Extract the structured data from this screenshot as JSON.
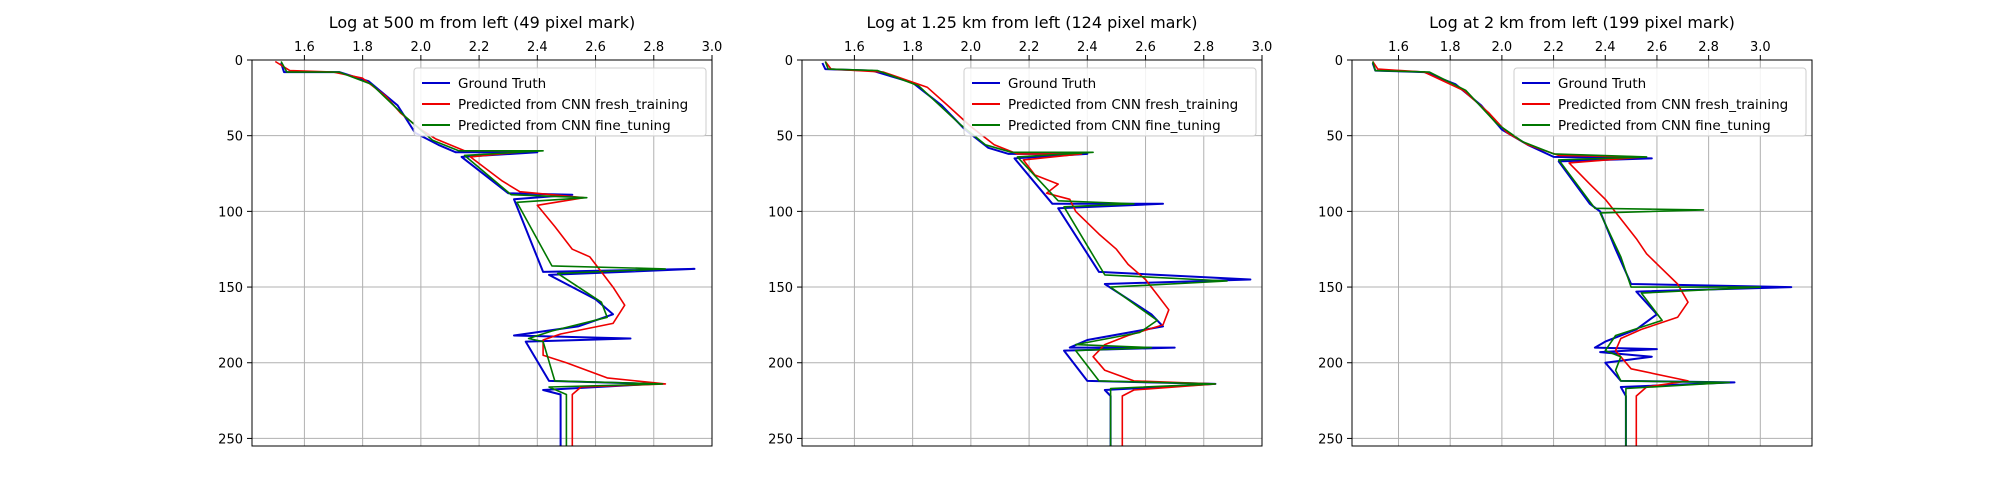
{
  "figure": {
    "colors": {
      "ground_truth": "#0000cc",
      "fresh_training": "#ee0000",
      "fine_tuning": "#007700",
      "grid": "#b0b0b0"
    }
  },
  "chart_data": [
    {
      "type": "line",
      "title": "Log at 500 m from left (49 pixel mark)",
      "xlim": [
        1.42,
        3.0
      ],
      "ylim": [
        255,
        0
      ],
      "xticks": [
        "1.6",
        "1.8",
        "2.0",
        "2.2",
        "2.4",
        "2.6",
        "2.8",
        "3.0"
      ],
      "yticks": [
        "0",
        "50",
        "100",
        "150",
        "200",
        "250"
      ],
      "grid": true,
      "legend_position": "upper-right",
      "legend": [
        "Ground Truth",
        "Predicted from CNN fresh_training",
        "Predicted from CNN fine_tuning"
      ],
      "series": [
        {
          "name": "Ground Truth",
          "color": "#0000cc",
          "points": [
            [
              1.52,
              2
            ],
            [
              1.53,
              8
            ],
            [
              1.72,
              8
            ],
            [
              1.82,
              14
            ],
            [
              1.92,
              30
            ],
            [
              1.98,
              48
            ],
            [
              2.06,
              56
            ],
            [
              2.12,
              61
            ],
            [
              2.4,
              61
            ],
            [
              2.14,
              64
            ],
            [
              2.3,
              88
            ],
            [
              2.52,
              89
            ],
            [
              2.32,
              92
            ],
            [
              2.42,
              140
            ],
            [
              2.94,
              138
            ],
            [
              2.44,
              142
            ],
            [
              2.6,
              158
            ],
            [
              2.66,
              168
            ],
            [
              2.54,
              176
            ],
            [
              2.32,
              182
            ],
            [
              2.72,
              184
            ],
            [
              2.36,
              186
            ],
            [
              2.44,
              212
            ],
            [
              2.8,
              214
            ],
            [
              2.42,
              218
            ],
            [
              2.48,
              221
            ],
            [
              2.48,
              255
            ]
          ]
        },
        {
          "name": "Predicted from CNN fresh_training",
          "color": "#ee0000",
          "points": [
            [
              1.5,
              1
            ],
            [
              1.55,
              7
            ],
            [
              1.7,
              8
            ],
            [
              1.8,
              12
            ],
            [
              1.84,
              18
            ],
            [
              1.88,
              24
            ],
            [
              1.93,
              35
            ],
            [
              2.0,
              46
            ],
            [
              2.05,
              52
            ],
            [
              2.15,
              60
            ],
            [
              2.38,
              60
            ],
            [
              2.17,
              64
            ],
            [
              2.28,
              80
            ],
            [
              2.34,
              87
            ],
            [
              2.56,
              91
            ],
            [
              2.4,
              96
            ],
            [
              2.46,
              110
            ],
            [
              2.52,
              125
            ],
            [
              2.58,
              130
            ],
            [
              2.62,
              140
            ],
            [
              2.66,
              150
            ],
            [
              2.7,
              162
            ],
            [
              2.66,
              174
            ],
            [
              2.48,
              181
            ],
            [
              2.42,
              185
            ],
            [
              2.42,
              195
            ],
            [
              2.5,
              200
            ],
            [
              2.64,
              210
            ],
            [
              2.84,
              214
            ],
            [
              2.55,
              216
            ],
            [
              2.52,
              221
            ],
            [
              2.52,
              255
            ]
          ]
        },
        {
          "name": "Predicted from CNN fine_tuning",
          "color": "#007700",
          "points": [
            [
              1.52,
              1
            ],
            [
              1.54,
              8
            ],
            [
              1.72,
              8
            ],
            [
              1.83,
              16
            ],
            [
              1.95,
              38
            ],
            [
              2.04,
              53
            ],
            [
              2.13,
              60
            ],
            [
              2.42,
              60
            ],
            [
              2.15,
              63
            ],
            [
              2.31,
              89
            ],
            [
              2.57,
              91
            ],
            [
              2.33,
              94
            ],
            [
              2.45,
              136
            ],
            [
              2.84,
              138
            ],
            [
              2.47,
              141
            ],
            [
              2.62,
              160
            ],
            [
              2.64,
              170
            ],
            [
              2.45,
              179
            ],
            [
              2.37,
              184
            ],
            [
              2.42,
              186
            ],
            [
              2.46,
              212
            ],
            [
              2.83,
              214
            ],
            [
              2.44,
              216
            ],
            [
              2.5,
              221
            ],
            [
              2.5,
              255
            ]
          ]
        }
      ]
    },
    {
      "type": "line",
      "title": "Log at 1.25 km from left (124 pixel mark)",
      "xlim": [
        1.42,
        3.0
      ],
      "ylim": [
        255,
        0
      ],
      "xticks": [
        "1.6",
        "1.8",
        "2.0",
        "2.2",
        "2.4",
        "2.6",
        "2.8",
        "3.0"
      ],
      "yticks": [
        "0",
        "50",
        "100",
        "150",
        "200",
        "250"
      ],
      "grid": true,
      "legend_position": "upper-right",
      "legend": [
        "Ground Truth",
        "Predicted from CNN fresh_training",
        "Predicted from CNN fine_tuning"
      ],
      "series": [
        {
          "name": "Ground Truth",
          "color": "#0000cc",
          "points": [
            [
              1.49,
              2
            ],
            [
              1.5,
              6
            ],
            [
              1.66,
              7
            ],
            [
              1.8,
              15
            ],
            [
              1.9,
              30
            ],
            [
              1.98,
              46
            ],
            [
              2.06,
              58
            ],
            [
              2.13,
              62
            ],
            [
              2.4,
              62
            ],
            [
              2.15,
              65
            ],
            [
              2.28,
              95
            ],
            [
              2.66,
              95
            ],
            [
              2.3,
              98
            ],
            [
              2.44,
              140
            ],
            [
              2.96,
              145
            ],
            [
              2.46,
              148
            ],
            [
              2.62,
              168
            ],
            [
              2.66,
              176
            ],
            [
              2.4,
              185
            ],
            [
              2.34,
              190
            ],
            [
              2.7,
              190
            ],
            [
              2.32,
              192
            ],
            [
              2.4,
              212
            ],
            [
              2.84,
              214
            ],
            [
              2.46,
              218
            ],
            [
              2.48,
              222
            ],
            [
              2.48,
              255
            ]
          ]
        },
        {
          "name": "Predicted from CNN fresh_training",
          "color": "#ee0000",
          "points": [
            [
              1.5,
              1
            ],
            [
              1.52,
              6
            ],
            [
              1.7,
              8
            ],
            [
              1.85,
              18
            ],
            [
              1.92,
              30
            ],
            [
              2.0,
              44
            ],
            [
              2.08,
              56
            ],
            [
              2.16,
              62
            ],
            [
              2.38,
              62
            ],
            [
              2.18,
              66
            ],
            [
              2.22,
              76
            ],
            [
              2.3,
              82
            ],
            [
              2.26,
              88
            ],
            [
              2.34,
              92
            ],
            [
              2.36,
              100
            ],
            [
              2.44,
              115
            ],
            [
              2.5,
              125
            ],
            [
              2.54,
              135
            ],
            [
              2.6,
              145
            ],
            [
              2.64,
              155
            ],
            [
              2.68,
              165
            ],
            [
              2.66,
              175
            ],
            [
              2.54,
              182
            ],
            [
              2.46,
              188
            ],
            [
              2.42,
              196
            ],
            [
              2.46,
              205
            ],
            [
              2.56,
              212
            ],
            [
              2.84,
              214
            ],
            [
              2.56,
              218
            ],
            [
              2.52,
              222
            ],
            [
              2.52,
              255
            ]
          ]
        },
        {
          "name": "Predicted from CNN fine_tuning",
          "color": "#007700",
          "points": [
            [
              1.5,
              1
            ],
            [
              1.51,
              6
            ],
            [
              1.68,
              7
            ],
            [
              1.82,
              17
            ],
            [
              1.96,
              42
            ],
            [
              2.05,
              56
            ],
            [
              2.14,
              61
            ],
            [
              2.42,
              61
            ],
            [
              2.16,
              64
            ],
            [
              2.3,
              93
            ],
            [
              2.56,
              95
            ],
            [
              2.32,
              97
            ],
            [
              2.46,
              142
            ],
            [
              2.88,
              146
            ],
            [
              2.48,
              150
            ],
            [
              2.64,
              172
            ],
            [
              2.58,
              180
            ],
            [
              2.36,
              188
            ],
            [
              2.62,
              190
            ],
            [
              2.36,
              192
            ],
            [
              2.44,
              212
            ],
            [
              2.84,
              214
            ],
            [
              2.48,
              217
            ],
            [
              2.48,
              222
            ],
            [
              2.48,
              255
            ]
          ]
        }
      ]
    },
    {
      "type": "line",
      "title": "Log at 2 km from left (199 pixel mark)",
      "xlim": [
        1.42,
        3.2
      ],
      "ylim": [
        255,
        0
      ],
      "xticks": [
        "1.6",
        "1.8",
        "2.0",
        "2.2",
        "2.4",
        "2.6",
        "2.8",
        "3.0"
      ],
      "yticks": [
        "0",
        "50",
        "100",
        "150",
        "200",
        "250"
      ],
      "grid": true,
      "legend_position": "upper-right",
      "legend": [
        "Ground Truth",
        "Predicted from CNN fresh_training",
        "Predicted from CNN fine_tuning"
      ],
      "series": [
        {
          "name": "Ground Truth",
          "color": "#0000cc",
          "points": [
            [
              1.5,
              2
            ],
            [
              1.51,
              7
            ],
            [
              1.7,
              8
            ],
            [
              1.82,
              16
            ],
            [
              1.92,
              30
            ],
            [
              2.0,
              46
            ],
            [
              2.1,
              56
            ],
            [
              2.2,
              64
            ],
            [
              2.58,
              65
            ],
            [
              2.22,
              67
            ],
            [
              2.34,
              95
            ],
            [
              2.38,
              100
            ],
            [
              2.44,
              125
            ],
            [
              2.5,
              148
            ],
            [
              3.12,
              150
            ],
            [
              2.52,
              153
            ],
            [
              2.6,
              168
            ],
            [
              2.52,
              178
            ],
            [
              2.4,
              186
            ],
            [
              2.36,
              190
            ],
            [
              2.6,
              191
            ],
            [
              2.38,
              193
            ],
            [
              2.58,
              196
            ],
            [
              2.4,
              200
            ],
            [
              2.46,
              212
            ],
            [
              2.9,
              213
            ],
            [
              2.46,
              216
            ],
            [
              2.48,
              222
            ],
            [
              2.48,
              255
            ]
          ]
        },
        {
          "name": "Predicted from CNN fresh_training",
          "color": "#ee0000",
          "points": [
            [
              1.5,
              1
            ],
            [
              1.52,
              6
            ],
            [
              1.7,
              8
            ],
            [
              1.85,
              20
            ],
            [
              1.95,
              35
            ],
            [
              2.02,
              48
            ],
            [
              2.1,
              56
            ],
            [
              2.22,
              63
            ],
            [
              2.55,
              64
            ],
            [
              2.26,
              68
            ],
            [
              2.34,
              82
            ],
            [
              2.4,
              92
            ],
            [
              2.46,
              105
            ],
            [
              2.52,
              118
            ],
            [
              2.56,
              128
            ],
            [
              2.62,
              138
            ],
            [
              2.68,
              148
            ],
            [
              2.72,
              160
            ],
            [
              2.68,
              170
            ],
            [
              2.54,
              178
            ],
            [
              2.46,
              184
            ],
            [
              2.44,
              192
            ],
            [
              2.5,
              204
            ],
            [
              2.72,
              212
            ],
            [
              2.56,
              216
            ],
            [
              2.52,
              222
            ],
            [
              2.52,
              255
            ]
          ]
        },
        {
          "name": "Predicted from CNN fine_tuning",
          "color": "#007700",
          "points": [
            [
              1.5,
              1
            ],
            [
              1.51,
              7
            ],
            [
              1.72,
              8
            ],
            [
              1.86,
              20
            ],
            [
              1.98,
              42
            ],
            [
              2.08,
              54
            ],
            [
              2.2,
              62
            ],
            [
              2.56,
              64
            ],
            [
              2.22,
              66
            ],
            [
              2.36,
              98
            ],
            [
              2.78,
              99
            ],
            [
              2.38,
              101
            ],
            [
              2.46,
              130
            ],
            [
              2.5,
              150
            ],
            [
              3.0,
              150
            ],
            [
              2.54,
              154
            ],
            [
              2.62,
              172
            ],
            [
              2.44,
              182
            ],
            [
              2.4,
              192
            ],
            [
              2.46,
              196
            ],
            [
              2.44,
              205
            ],
            [
              2.46,
              212
            ],
            [
              2.88,
              213
            ],
            [
              2.48,
              217
            ],
            [
              2.48,
              222
            ],
            [
              2.48,
              255
            ]
          ]
        }
      ]
    }
  ]
}
